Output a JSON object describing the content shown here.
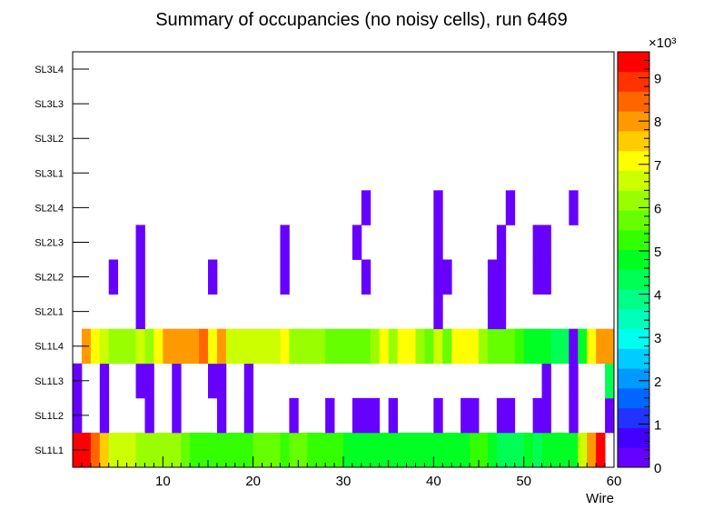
{
  "chart_data": {
    "type": "heatmap",
    "title": "Summary of occupancies (no noisy cells), run 6469",
    "xlabel": "Wire",
    "ylabel": "",
    "xlim": [
      0,
      60
    ],
    "x_ticks": [
      10,
      20,
      30,
      40,
      50,
      60
    ],
    "y_categories": [
      "SL1L1",
      "SL1L2",
      "SL1L3",
      "SL1L4",
      "SL2L1",
      "SL2L2",
      "SL2L3",
      "SL2L4",
      "SL3L1",
      "SL3L2",
      "SL3L3",
      "SL3L4"
    ],
    "z_range": [
      0,
      9600
    ],
    "z_ticks": [
      0,
      1,
      2,
      3,
      4,
      5,
      6,
      7,
      8,
      9
    ],
    "z_multiplier": "×10³",
    "palette": [
      "#6600ff",
      "#4400ff",
      "#2233ff",
      "#0066ff",
      "#0099ff",
      "#00ccff",
      "#00ffee",
      "#00ffbb",
      "#00ff88",
      "#00ff55",
      "#00ff22",
      "#33ff00",
      "#66ff00",
      "#99ff00",
      "#ccff00",
      "#ffff00",
      "#ffcc00",
      "#ff9900",
      "#ff6600",
      "#ff3300",
      "#ff0000"
    ],
    "rows": [
      {
        "name": "SL1L1",
        "values": [
          9400,
          9400,
          8600,
          7600,
          6800,
          6800,
          6400,
          6300,
          6200,
          6100,
          6200,
          6000,
          5500,
          5200,
          5200,
          5200,
          5200,
          5200,
          5200,
          5200,
          5600,
          5900,
          5700,
          5200,
          5600,
          5600,
          5300,
          5200,
          5200,
          5200,
          5000,
          5000,
          4600,
          4600,
          4600,
          4900,
          5000,
          5000,
          5000,
          5000,
          4600,
          4600,
          4600,
          4600,
          5100,
          5100,
          4700,
          4300,
          4300,
          4300,
          4600,
          4500,
          4600,
          4600,
          4600,
          4600,
          6700,
          7800,
          9400,
          0
        ]
      },
      {
        "name": "SL1L2",
        "values": [
          300,
          0,
          0,
          300,
          0,
          0,
          0,
          0,
          300,
          0,
          0,
          300,
          0,
          0,
          0,
          0,
          300,
          0,
          0,
          300,
          0,
          0,
          0,
          0,
          300,
          0,
          0,
          0,
          300,
          0,
          0,
          300,
          300,
          300,
          0,
          300,
          0,
          0,
          0,
          0,
          300,
          0,
          0,
          300,
          300,
          0,
          0,
          300,
          300,
          0,
          0,
          300,
          300,
          0,
          0,
          300,
          0,
          0,
          0,
          300
        ]
      },
      {
        "name": "SL1L3",
        "values": [
          300,
          0,
          0,
          300,
          0,
          0,
          0,
          300,
          300,
          0,
          0,
          300,
          0,
          0,
          0,
          300,
          300,
          0,
          0,
          300,
          0,
          0,
          0,
          0,
          0,
          0,
          0,
          0,
          0,
          0,
          0,
          0,
          0,
          0,
          0,
          0,
          0,
          0,
          0,
          0,
          0,
          0,
          0,
          0,
          0,
          0,
          0,
          0,
          0,
          0,
          0,
          0,
          300,
          0,
          0,
          300,
          0,
          0,
          0,
          4200
        ]
      },
      {
        "name": "SL1L4",
        "values": [
          0,
          8100,
          7300,
          6700,
          6200,
          6200,
          6200,
          6700,
          6000,
          7100,
          8000,
          8000,
          8000,
          8000,
          8400,
          7300,
          8000,
          6800,
          6500,
          6500,
          6500,
          6500,
          6500,
          6900,
          6000,
          6000,
          6000,
          6000,
          5500,
          5500,
          5500,
          5500,
          5500,
          6200,
          7300,
          6200,
          6900,
          6900,
          6300,
          5800,
          6500,
          5800,
          7000,
          7000,
          7000,
          6300,
          5700,
          5700,
          5700,
          5200,
          4700,
          4700,
          4700,
          4300,
          4300,
          300,
          4600,
          7000,
          8100,
          8100
        ]
      },
      {
        "name": "SL2L1",
        "values": [
          0,
          0,
          0,
          0,
          0,
          0,
          0,
          300,
          0,
          0,
          0,
          0,
          0,
          0,
          0,
          0,
          0,
          0,
          0,
          0,
          0,
          0,
          0,
          0,
          0,
          0,
          0,
          0,
          0,
          0,
          0,
          0,
          0,
          0,
          0,
          0,
          0,
          0,
          0,
          0,
          300,
          0,
          0,
          0,
          0,
          0,
          300,
          300,
          0,
          0,
          0,
          0,
          0,
          0,
          0,
          0,
          0,
          0,
          0,
          0
        ]
      },
      {
        "name": "SL2L2",
        "values": [
          0,
          0,
          0,
          0,
          300,
          0,
          0,
          300,
          0,
          0,
          0,
          0,
          0,
          0,
          0,
          300,
          0,
          0,
          0,
          0,
          0,
          0,
          0,
          300,
          0,
          0,
          0,
          0,
          0,
          0,
          0,
          0,
          300,
          0,
          0,
          0,
          0,
          0,
          0,
          0,
          300,
          300,
          0,
          0,
          0,
          0,
          300,
          300,
          0,
          0,
          0,
          300,
          300,
          0,
          0,
          0,
          0,
          0,
          0,
          0
        ]
      },
      {
        "name": "SL2L3",
        "values": [
          0,
          0,
          0,
          0,
          0,
          0,
          0,
          300,
          0,
          0,
          0,
          0,
          0,
          0,
          0,
          0,
          0,
          0,
          0,
          0,
          0,
          0,
          0,
          300,
          0,
          0,
          0,
          0,
          0,
          0,
          0,
          300,
          0,
          0,
          0,
          0,
          0,
          0,
          0,
          0,
          300,
          0,
          0,
          0,
          0,
          0,
          0,
          300,
          0,
          0,
          0,
          300,
          300,
          0,
          0,
          0,
          0,
          0,
          0,
          0
        ]
      },
      {
        "name": "SL2L4",
        "values": [
          0,
          0,
          0,
          0,
          0,
          0,
          0,
          0,
          0,
          0,
          0,
          0,
          0,
          0,
          0,
          0,
          0,
          0,
          0,
          0,
          0,
          0,
          0,
          0,
          0,
          0,
          0,
          0,
          0,
          0,
          0,
          0,
          300,
          0,
          0,
          0,
          0,
          0,
          0,
          0,
          300,
          0,
          0,
          0,
          0,
          0,
          0,
          0,
          300,
          0,
          0,
          0,
          0,
          0,
          0,
          300,
          0,
          0,
          0,
          0
        ]
      },
      {
        "name": "SL3L1",
        "values": [
          0,
          0,
          0,
          0,
          0,
          0,
          0,
          0,
          0,
          0,
          0,
          0,
          0,
          0,
          0,
          0,
          0,
          0,
          0,
          0,
          0,
          0,
          0,
          0,
          0,
          0,
          0,
          0,
          0,
          0,
          0,
          0,
          0,
          0,
          0,
          0,
          0,
          0,
          0,
          0,
          0,
          0,
          0,
          0,
          0,
          0,
          0,
          0,
          0,
          0,
          0,
          0,
          0,
          0,
          0,
          0,
          0,
          0,
          0,
          0
        ]
      },
      {
        "name": "SL3L2",
        "values": [
          0,
          0,
          0,
          0,
          0,
          0,
          0,
          0,
          0,
          0,
          0,
          0,
          0,
          0,
          0,
          0,
          0,
          0,
          0,
          0,
          0,
          0,
          0,
          0,
          0,
          0,
          0,
          0,
          0,
          0,
          0,
          0,
          0,
          0,
          0,
          0,
          0,
          0,
          0,
          0,
          0,
          0,
          0,
          0,
          0,
          0,
          0,
          0,
          0,
          0,
          0,
          0,
          0,
          0,
          0,
          0,
          0,
          0,
          0,
          0
        ]
      },
      {
        "name": "SL3L3",
        "values": [
          0,
          0,
          0,
          0,
          0,
          0,
          0,
          0,
          0,
          0,
          0,
          0,
          0,
          0,
          0,
          0,
          0,
          0,
          0,
          0,
          0,
          0,
          0,
          0,
          0,
          0,
          0,
          0,
          0,
          0,
          0,
          0,
          0,
          0,
          0,
          0,
          0,
          0,
          0,
          0,
          0,
          0,
          0,
          0,
          0,
          0,
          0,
          0,
          0,
          0,
          0,
          0,
          0,
          0,
          0,
          0,
          0,
          0,
          0,
          0
        ]
      },
      {
        "name": "SL3L4",
        "values": [
          0,
          0,
          0,
          0,
          0,
          0,
          0,
          0,
          0,
          0,
          0,
          0,
          0,
          0,
          0,
          0,
          0,
          0,
          0,
          0,
          0,
          0,
          0,
          0,
          0,
          0,
          0,
          0,
          0,
          0,
          0,
          0,
          0,
          0,
          0,
          0,
          0,
          0,
          0,
          0,
          0,
          0,
          0,
          0,
          0,
          0,
          0,
          0,
          0,
          0,
          0,
          0,
          0,
          0,
          0,
          0,
          0,
          0,
          0,
          0
        ]
      }
    ]
  }
}
